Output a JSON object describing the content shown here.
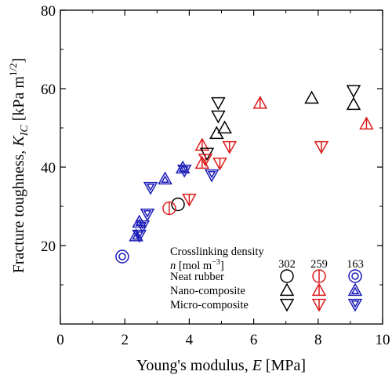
{
  "chart_data": {
    "type": "scatter",
    "xlabel": "Young's modulus, E [MPa]",
    "ylabel": "Fracture toughness, K_IC [kPa m^1/2]",
    "xlim": [
      0,
      10
    ],
    "ylim": [
      0,
      80
    ],
    "x_ticks": [
      "0",
      "2",
      "4",
      "6",
      "8",
      "10"
    ],
    "y_ticks": [
      "20",
      "40",
      "60",
      "80"
    ],
    "grid": false,
    "colors": {
      "302": "#000000",
      "259": "#dd1c1c",
      "163": "#1a1ab8"
    },
    "series": [
      {
        "name": "Neat rubber 302",
        "density": "302",
        "material": "neat",
        "marker": "circle",
        "points": [
          [
            3.65,
            30.5
          ]
        ]
      },
      {
        "name": "Neat rubber 259",
        "density": "259",
        "material": "neat",
        "marker": "circle",
        "points": [
          [
            3.38,
            29.5
          ]
        ]
      },
      {
        "name": "Neat rubber 163",
        "density": "163",
        "material": "neat",
        "marker": "circle",
        "points": [
          [
            1.92,
            17.2
          ]
        ]
      },
      {
        "name": "Nano-composite 302",
        "density": "302",
        "material": "nano",
        "marker": "triangle-up",
        "points": [
          [
            4.85,
            48.6
          ],
          [
            5.1,
            50.0
          ],
          [
            7.8,
            57.6
          ],
          [
            9.1,
            56.0
          ]
        ]
      },
      {
        "name": "Nano-composite 259",
        "density": "259",
        "material": "nano",
        "marker": "triangle-up",
        "points": [
          [
            4.4,
            41.0
          ],
          [
            4.4,
            45.6
          ],
          [
            6.2,
            56.3
          ],
          [
            9.5,
            51.0
          ]
        ]
      },
      {
        "name": "Nano-composite 163",
        "density": "163",
        "material": "nano",
        "marker": "triangle-up",
        "points": [
          [
            2.35,
            22.5
          ],
          [
            2.45,
            26.0
          ],
          [
            3.25,
            37.0
          ],
          [
            3.8,
            39.8
          ]
        ]
      },
      {
        "name": "Micro-composite 302",
        "density": "302",
        "material": "micro",
        "marker": "triangle-down",
        "points": [
          [
            4.55,
            43.5
          ],
          [
            4.9,
            56.4
          ],
          [
            4.9,
            53.0
          ],
          [
            9.1,
            59.5
          ]
        ]
      },
      {
        "name": "Micro-composite 259",
        "density": "259",
        "material": "micro",
        "marker": "triangle-down",
        "points": [
          [
            4.0,
            31.8
          ],
          [
            4.5,
            42.0
          ],
          [
            4.95,
            41.0
          ],
          [
            5.25,
            45.2
          ],
          [
            8.1,
            45.2
          ]
        ]
      },
      {
        "name": "Micro-composite 163",
        "density": "163",
        "material": "micro",
        "marker": "triangle-down",
        "points": [
          [
            2.45,
            22.6
          ],
          [
            2.55,
            25.0
          ],
          [
            2.7,
            28.0
          ],
          [
            2.8,
            34.8
          ],
          [
            3.85,
            39.2
          ],
          [
            4.7,
            38.0
          ]
        ]
      }
    ],
    "legend": {
      "title": "Crosslinking density",
      "unit_label": "n [mol m^-3]",
      "columns": [
        "302",
        "259",
        "163"
      ],
      "rows": [
        {
          "label": "Neat rubber",
          "marker": "circle"
        },
        {
          "label": "Nano-composite",
          "marker": "triangle-up"
        },
        {
          "label": "Micro-composite",
          "marker": "triangle-down"
        }
      ],
      "placement": "lower-right"
    }
  }
}
